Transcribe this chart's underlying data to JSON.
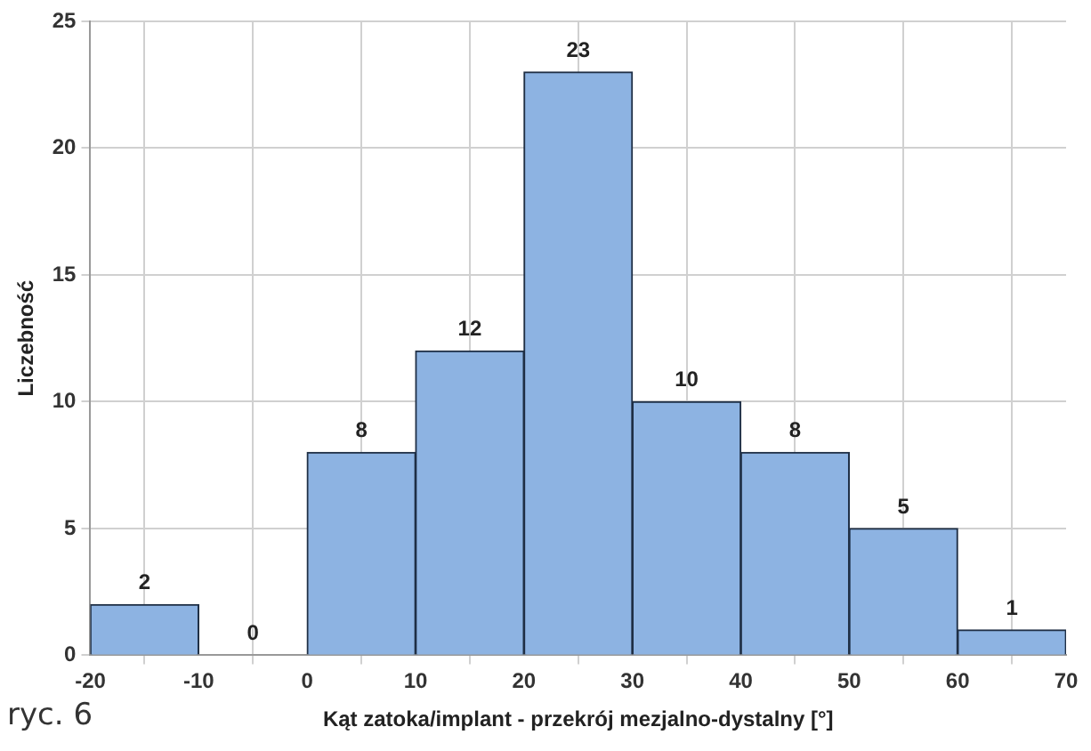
{
  "chart_data": {
    "type": "histogram",
    "bins": [
      -20,
      -10,
      0,
      10,
      20,
      30,
      40,
      50,
      60,
      70
    ],
    "values": [
      2,
      0,
      8,
      12,
      23,
      10,
      8,
      5,
      1
    ],
    "color": "#8db3e2",
    "xlabel": "Kąt zatoka/implant - przekrój mezjalno-dystalny [°]",
    "ylabel": "Liczebność",
    "xlim": [
      -20,
      70
    ],
    "xticks": [
      -20,
      -10,
      0,
      10,
      20,
      30,
      40,
      50,
      60,
      70
    ],
    "ylim": [
      0,
      25
    ],
    "yticks": [
      0,
      5,
      10,
      15,
      20,
      25
    ],
    "grid": true,
    "data_labels": true,
    "annotations": [
      "ryc. 6"
    ]
  }
}
